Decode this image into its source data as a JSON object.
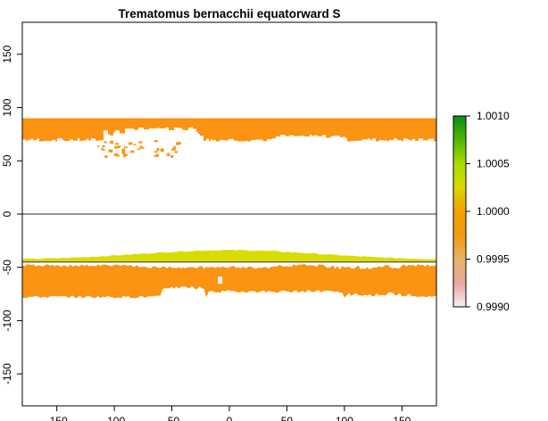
{
  "chart_data": {
    "type": "heatmap",
    "title": "Trematomus bernacchii equatorward S",
    "xlabel": "",
    "ylabel": "",
    "xlim": [
      -180,
      180
    ],
    "ylim": [
      -180,
      180
    ],
    "x_ticks": [
      -150,
      -100,
      -50,
      0,
      50,
      100,
      150
    ],
    "x_tick_labels": [
      "-150",
      "-100",
      "-50",
      "0",
      "50",
      "100",
      "150"
    ],
    "y_ticks": [
      -150,
      -100,
      -50,
      0,
      50,
      100,
      150
    ],
    "y_tick_labels": [
      "-150",
      "-100",
      "-50",
      "0",
      "50",
      "100",
      "150"
    ],
    "reference_lines_y": [
      0,
      -45
    ],
    "colorbar": {
      "min": 0.999,
      "max": 1.001,
      "ticks": [
        0.999,
        0.9995,
        1.0,
        1.0005,
        1.001
      ],
      "tick_labels": [
        "0.9990",
        "0.9995",
        "1.0000",
        "1.0005",
        "1.0010"
      ],
      "color_stops": [
        "#f6f0f0",
        "#e8a7a0",
        "#e9b36a",
        "#f29a10",
        "#f5a000",
        "#d9d800",
        "#a8dc00",
        "#4fb800",
        "#0a8c18"
      ]
    },
    "regions": [
      {
        "name": "northern-band",
        "value": 0.99965,
        "color": "#fb9313",
        "lat_range": [
          68,
          90
        ],
        "lon_range": [
          -180,
          180
        ]
      },
      {
        "name": "southern-equatorward-band",
        "value": 1.0,
        "color": "#d9dc00",
        "lat_range": [
          -45,
          -36
        ],
        "lon_range": [
          -180,
          180
        ]
      },
      {
        "name": "southern-band",
        "value": 0.99965,
        "color": "#fb9313",
        "lat_range": [
          -79,
          -47
        ],
        "lon_range": [
          -180,
          180
        ]
      }
    ],
    "grid": false,
    "legend": "right"
  }
}
